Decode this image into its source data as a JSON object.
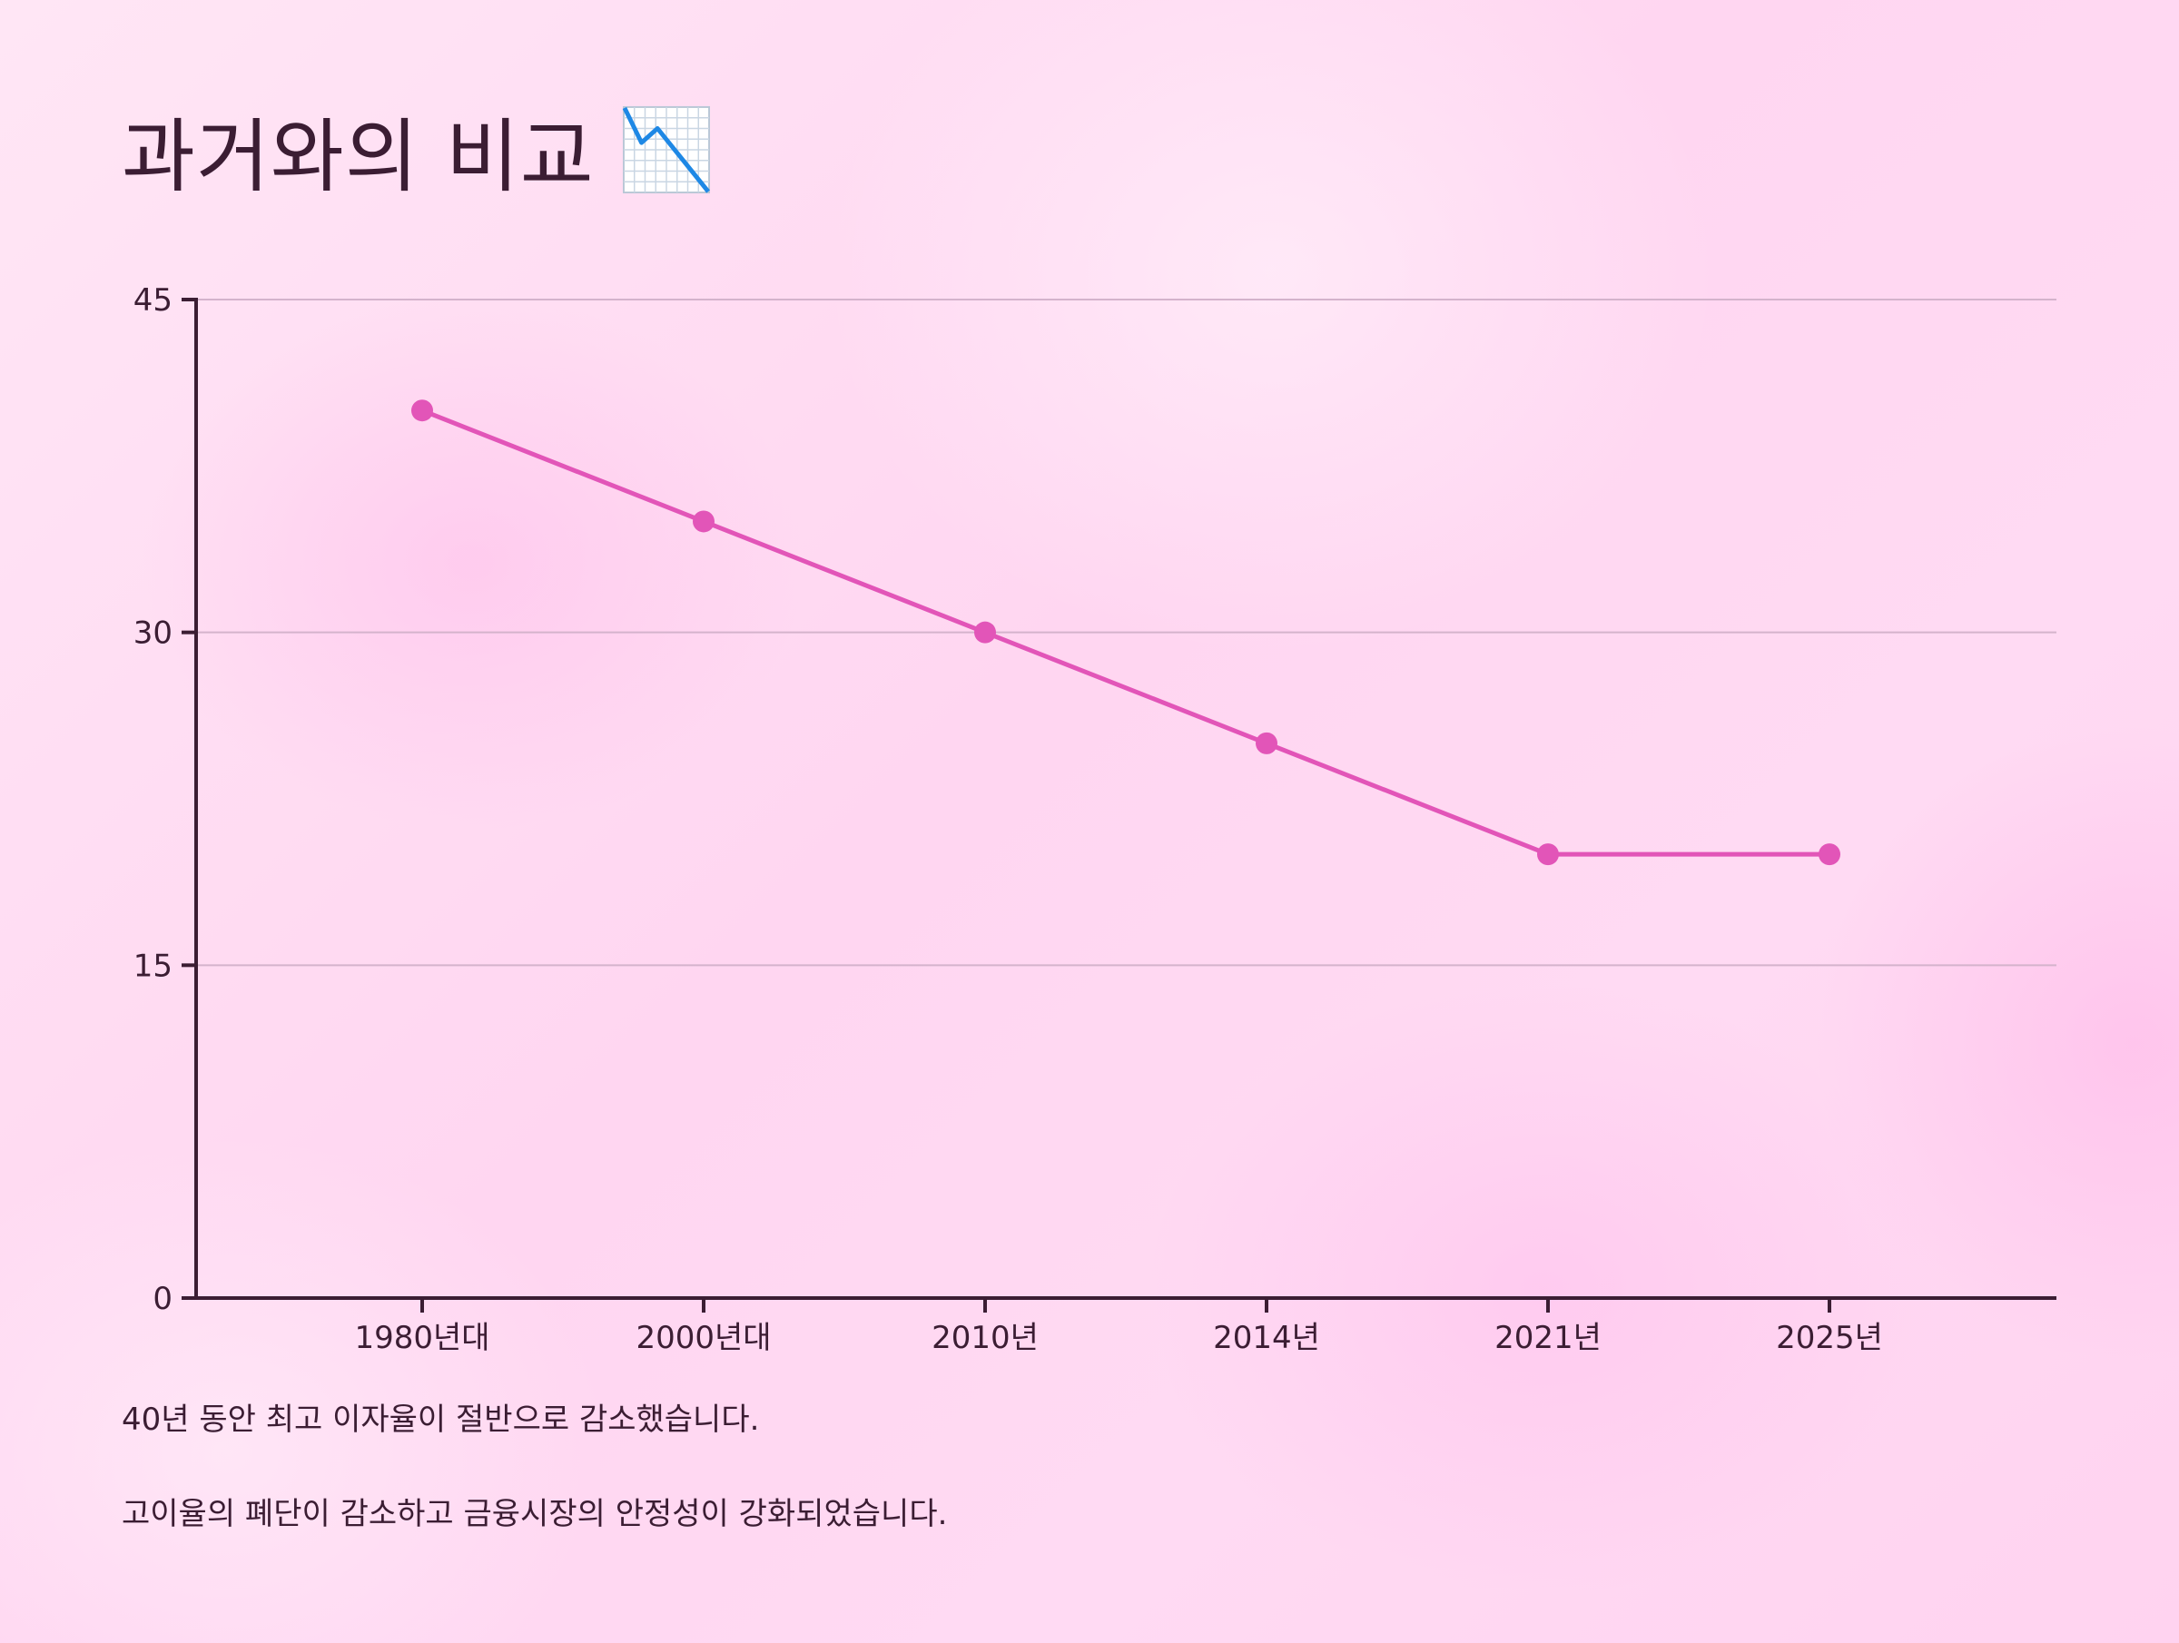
{
  "title": "과거와의 비교",
  "title_icon": "chart-decreasing-icon",
  "colors": {
    "line": "#e255b8",
    "axis": "#3b1d33",
    "grid": "#d4b3cc",
    "text": "#3b1d33",
    "icon_line": "#1e88e5"
  },
  "chart_data": {
    "type": "line",
    "title": "",
    "xlabel": "",
    "ylabel": "",
    "categories": [
      "1980년대",
      "2000년대",
      "2010년",
      "2014년",
      "2021년",
      "2025년"
    ],
    "series": [
      {
        "values": [
          40,
          35,
          30,
          25,
          20,
          20
        ]
      }
    ],
    "ylim": [
      0,
      45
    ],
    "yticks": [
      0,
      15,
      30,
      45
    ],
    "grid": true,
    "legend": "none"
  },
  "notes": [
    "40년 동안 최고 이자율이 절반으로 감소했습니다.",
    "고이율의 폐단이 감소하고 금융시장의 안정성이 강화되었습니다."
  ]
}
